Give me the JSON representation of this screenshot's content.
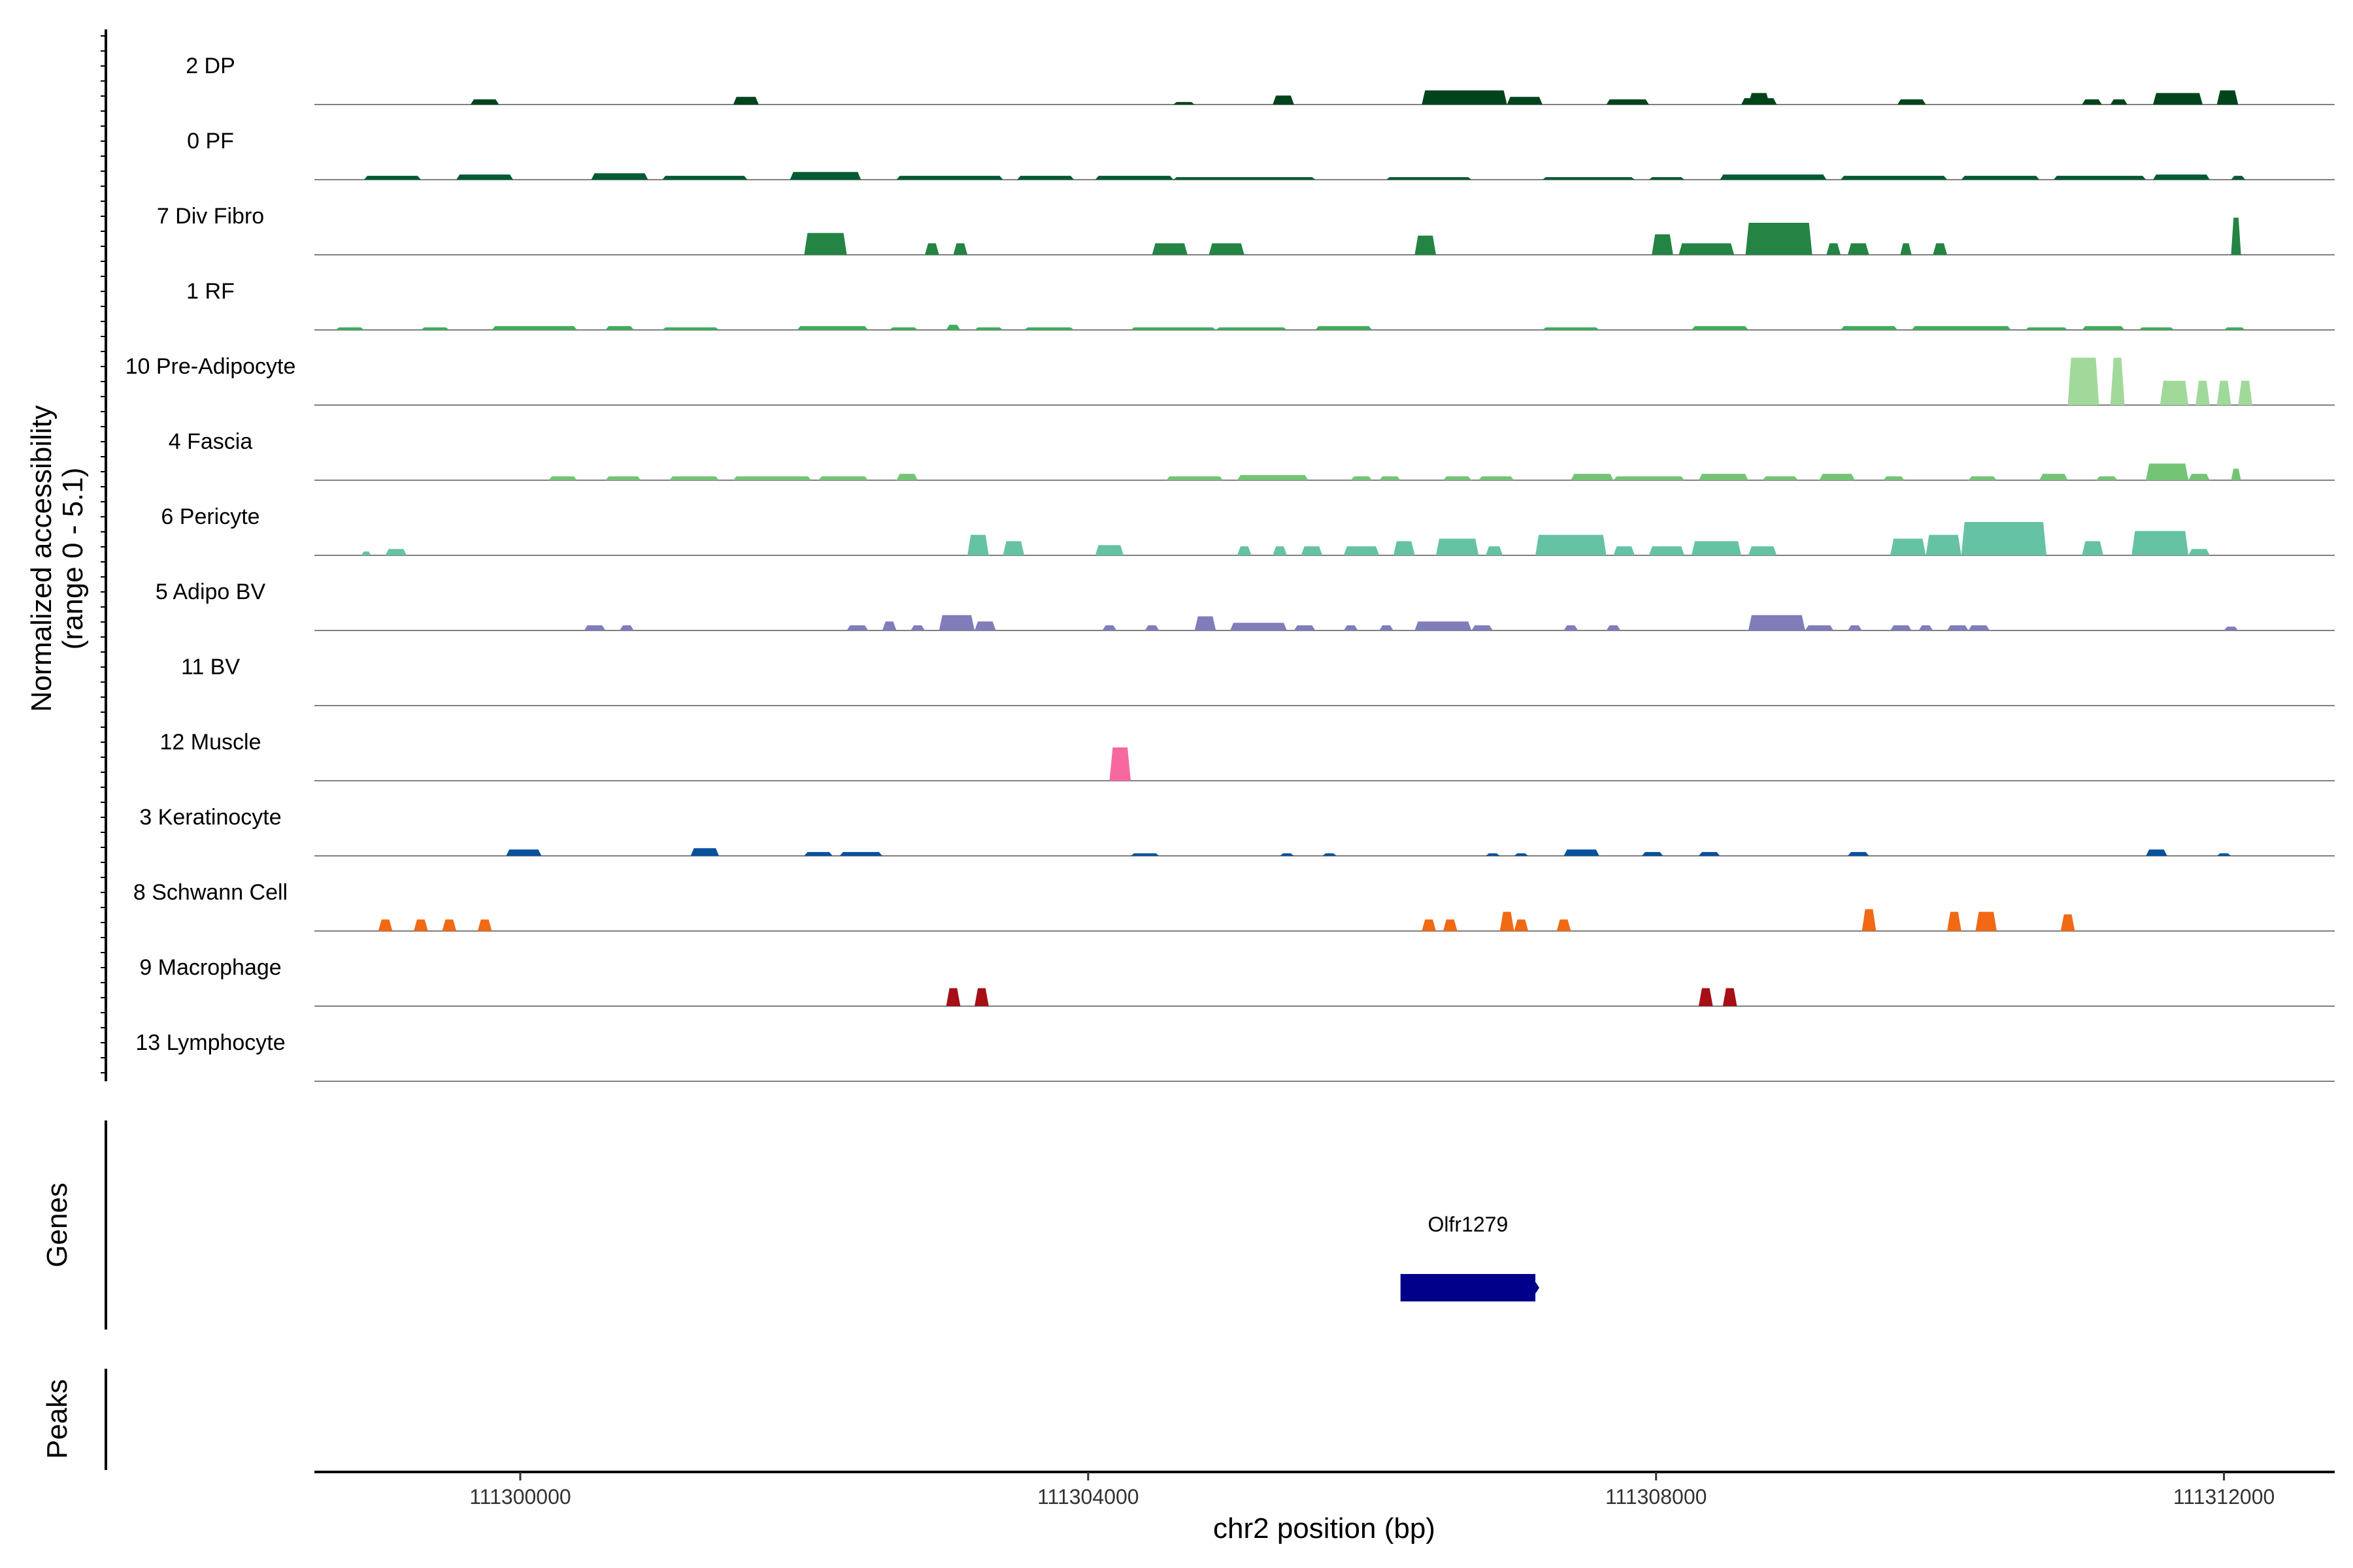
{
  "chart_data": {
    "type": "area",
    "title": "",
    "xlabel": "chr2 position (bp)",
    "ylabel_line1": "Normalized accessibility",
    "ylabel_line2": "(range 0 - 5.1)",
    "ylim": [
      0,
      5.1
    ],
    "xlim": [
      111298550,
      111312780
    ],
    "x_ticks": [
      111300000,
      111304000,
      111308000,
      111312000
    ],
    "x_tick_labels": [
      "111300000",
      "111304000",
      "111308000",
      "111312000"
    ],
    "panel_labels": {
      "genes": "Genes",
      "peaks": "Peaks"
    },
    "genes": [
      {
        "name": "Olfr1279",
        "start": 111306200,
        "end": 111307150,
        "strand": "+",
        "color": "#00008B"
      }
    ],
    "peaks": [],
    "series": [
      {
        "name": "2 DP",
        "color": "#00441B",
        "segments": [
          [
            111299650,
            111299850,
            0.4
          ],
          [
            111301500,
            111301680,
            0.6
          ],
          [
            111304600,
            111304750,
            0.2
          ],
          [
            111305300,
            111305450,
            0.7
          ],
          [
            111306350,
            111306950,
            1.1
          ],
          [
            111306950,
            111307200,
            0.6
          ],
          [
            111307650,
            111307950,
            0.4
          ],
          [
            111308650,
            111308800,
            0.9
          ],
          [
            111308600,
            111308850,
            0.5
          ],
          [
            111309700,
            111309900,
            0.4
          ],
          [
            111311000,
            111311140,
            0.4
          ],
          [
            111311200,
            111311320,
            0.4
          ],
          [
            111311500,
            111311850,
            0.9
          ],
          [
            111311950,
            111312100,
            1.1
          ]
        ]
      },
      {
        "name": "0 PF",
        "color": "#005A32",
        "segments": [
          [
            111298900,
            111299300,
            0.3
          ],
          [
            111299550,
            111299950,
            0.4
          ],
          [
            111300500,
            111300900,
            0.5
          ],
          [
            111301000,
            111301600,
            0.3
          ],
          [
            111301900,
            111302400,
            0.6
          ],
          [
            111302650,
            111303400,
            0.3
          ],
          [
            111303500,
            111303900,
            0.3
          ],
          [
            111304050,
            111304600,
            0.3
          ],
          [
            111304600,
            111305600,
            0.2
          ],
          [
            111306100,
            111306700,
            0.2
          ],
          [
            111307200,
            111307850,
            0.2
          ],
          [
            111307950,
            111308200,
            0.2
          ],
          [
            111308450,
            111309200,
            0.4
          ],
          [
            111309300,
            111310050,
            0.3
          ],
          [
            111310150,
            111310700,
            0.3
          ],
          [
            111310800,
            111311450,
            0.3
          ],
          [
            111311500,
            111311900,
            0.4
          ],
          [
            111312050,
            111312150,
            0.3
          ]
        ]
      },
      {
        "name": "7 Div Fibro",
        "color": "#238443",
        "segments": [
          [
            111302000,
            111302300,
            1.7
          ],
          [
            111302850,
            111302950,
            0.9
          ],
          [
            111303050,
            111303150,
            0.9
          ],
          [
            111304450,
            111304700,
            0.9
          ],
          [
            111304850,
            111305100,
            0.9
          ],
          [
            111306300,
            111306450,
            1.5
          ],
          [
            111307970,
            111308120,
            1.6
          ],
          [
            111308160,
            111308550,
            0.9
          ],
          [
            111308630,
            111309100,
            2.5
          ],
          [
            111309200,
            111309300,
            0.9
          ],
          [
            111309350,
            111309500,
            0.9
          ],
          [
            111309720,
            111309800,
            0.9
          ],
          [
            111309950,
            111310050,
            0.9
          ],
          [
            111312050,
            111312120,
            2.9
          ]
        ]
      },
      {
        "name": "1 RF",
        "color": "#41AB5D",
        "segments": [
          [
            111298700,
            111298900,
            0.2
          ],
          [
            111299300,
            111299500,
            0.2
          ],
          [
            111299800,
            111300400,
            0.3
          ],
          [
            111300600,
            111300800,
            0.3
          ],
          [
            111301000,
            111301400,
            0.2
          ],
          [
            111301950,
            111302450,
            0.3
          ],
          [
            111302600,
            111302800,
            0.2
          ],
          [
            111303000,
            111303100,
            0.4
          ],
          [
            111303200,
            111303400,
            0.2
          ],
          [
            111303550,
            111303900,
            0.2
          ],
          [
            111304300,
            111304900,
            0.2
          ],
          [
            111304900,
            111305400,
            0.2
          ],
          [
            111305600,
            111306000,
            0.3
          ],
          [
            111307200,
            111307600,
            0.2
          ],
          [
            111308250,
            111308650,
            0.3
          ],
          [
            111309300,
            111309700,
            0.3
          ],
          [
            111309800,
            111310500,
            0.3
          ],
          [
            111310600,
            111310900,
            0.2
          ],
          [
            111311000,
            111311300,
            0.3
          ],
          [
            111311400,
            111311650,
            0.2
          ],
          [
            111312000,
            111312150,
            0.2
          ]
        ]
      },
      {
        "name": "10 Pre-Adipocyte",
        "color": "#A1D99B",
        "segments": [
          [
            111310900,
            111311120,
            3.7
          ],
          [
            111311200,
            111311300,
            3.7
          ],
          [
            111311550,
            111311750,
            1.9
          ],
          [
            111311800,
            111311900,
            1.9
          ],
          [
            111311950,
            111312050,
            1.9
          ],
          [
            111312100,
            111312200,
            1.9
          ]
        ]
      },
      {
        "name": "4 Fascia",
        "color": "#74C476",
        "segments": [
          [
            111300200,
            111300400,
            0.3
          ],
          [
            111300600,
            111300850,
            0.3
          ],
          [
            111301050,
            111301400,
            0.3
          ],
          [
            111301500,
            111302050,
            0.3
          ],
          [
            111302100,
            111302450,
            0.3
          ],
          [
            111302650,
            111302800,
            0.5
          ],
          [
            111304550,
            111304950,
            0.3
          ],
          [
            111305050,
            111305550,
            0.4
          ],
          [
            111305850,
            111306000,
            0.3
          ],
          [
            111306050,
            111306200,
            0.3
          ],
          [
            111306500,
            111306700,
            0.3
          ],
          [
            111306750,
            111307000,
            0.3
          ],
          [
            111307400,
            111307700,
            0.5
          ],
          [
            111307700,
            111308200,
            0.3
          ],
          [
            111308300,
            111308650,
            0.5
          ],
          [
            111308750,
            111309000,
            0.3
          ],
          [
            111309150,
            111309400,
            0.5
          ],
          [
            111309600,
            111309750,
            0.3
          ],
          [
            111310200,
            111310400,
            0.3
          ],
          [
            111310700,
            111310900,
            0.5
          ],
          [
            111311100,
            111311250,
            0.3
          ],
          [
            111311450,
            111311750,
            1.3
          ],
          [
            111311750,
            111311900,
            0.5
          ],
          [
            111312050,
            111312120,
            0.9
          ]
        ]
      },
      {
        "name": "6 Pericyte",
        "color": "#66C2A4",
        "segments": [
          [
            111298880,
            111298950,
            0.3
          ],
          [
            111299050,
            111299200,
            0.5
          ],
          [
            111303150,
            111303300,
            1.6
          ],
          [
            111303400,
            111303550,
            1.1
          ],
          [
            111304050,
            111304250,
            0.8
          ],
          [
            111305050,
            111305150,
            0.7
          ],
          [
            111305300,
            111305400,
            0.7
          ],
          [
            111305500,
            111305650,
            0.7
          ],
          [
            111305800,
            111306050,
            0.7
          ],
          [
            111306150,
            111306300,
            1.1
          ],
          [
            111306450,
            111306750,
            1.3
          ],
          [
            111306800,
            111306920,
            0.7
          ],
          [
            111307150,
            111307650,
            1.6
          ],
          [
            111307700,
            111307850,
            0.7
          ],
          [
            111307950,
            111308200,
            0.7
          ],
          [
            111308250,
            111308600,
            1.1
          ],
          [
            111308650,
            111308850,
            0.7
          ],
          [
            111309650,
            111309900,
            1.3
          ],
          [
            111309900,
            111310150,
            1.6
          ],
          [
            111310150,
            111310750,
            2.6
          ],
          [
            111311000,
            111311150,
            1.1
          ],
          [
            111311350,
            111311750,
            1.9
          ],
          [
            111311750,
            111311900,
            0.5
          ]
        ]
      },
      {
        "name": "5 Adipo BV",
        "color": "#807DBA",
        "segments": [
          [
            111300450,
            111300600,
            0.4
          ],
          [
            111300700,
            111300800,
            0.4
          ],
          [
            111302300,
            111302450,
            0.4
          ],
          [
            111302550,
            111302650,
            0.7
          ],
          [
            111302750,
            111302850,
            0.4
          ],
          [
            111302950,
            111303200,
            1.2
          ],
          [
            111303200,
            111303350,
            0.7
          ],
          [
            111304100,
            111304200,
            0.4
          ],
          [
            111304400,
            111304500,
            0.4
          ],
          [
            111304750,
            111304900,
            1.1
          ],
          [
            111305000,
            111305400,
            0.6
          ],
          [
            111305450,
            111305600,
            0.4
          ],
          [
            111305800,
            111305900,
            0.4
          ],
          [
            111306050,
            111306150,
            0.4
          ],
          [
            111306300,
            111306700,
            0.7
          ],
          [
            111306700,
            111306850,
            0.4
          ],
          [
            111307350,
            111307450,
            0.4
          ],
          [
            111307650,
            111307750,
            0.4
          ],
          [
            111308650,
            111309050,
            1.2
          ],
          [
            111309050,
            111309250,
            0.4
          ],
          [
            111309350,
            111309450,
            0.4
          ],
          [
            111309650,
            111309800,
            0.4
          ],
          [
            111309850,
            111309950,
            0.4
          ],
          [
            111310050,
            111310200,
            0.4
          ],
          [
            111310200,
            111310350,
            0.4
          ],
          [
            111312000,
            111312100,
            0.3
          ]
        ]
      },
      {
        "name": "11 BV",
        "color": "#3F007D",
        "segments": []
      },
      {
        "name": "12 Muscle",
        "color": "#F768A1",
        "segments": [
          [
            111304150,
            111304300,
            2.6
          ]
        ]
      },
      {
        "name": "3 Keratinocyte",
        "color": "#08519C",
        "segments": [
          [
            111299900,
            111300150,
            0.5
          ],
          [
            111301200,
            111301400,
            0.6
          ],
          [
            111302000,
            111302200,
            0.3
          ],
          [
            111302250,
            111302550,
            0.3
          ],
          [
            111304300,
            111304500,
            0.2
          ],
          [
            111305350,
            111305450,
            0.2
          ],
          [
            111305650,
            111305750,
            0.2
          ],
          [
            111306800,
            111306900,
            0.2
          ],
          [
            111307000,
            111307100,
            0.2
          ],
          [
            111307350,
            111307600,
            0.5
          ],
          [
            111307900,
            111308050,
            0.3
          ],
          [
            111308300,
            111308450,
            0.3
          ],
          [
            111309350,
            111309500,
            0.3
          ],
          [
            111311450,
            111311600,
            0.5
          ],
          [
            111311950,
            111312050,
            0.2
          ]
        ]
      },
      {
        "name": "8 Schwann Cell",
        "color": "#F16913",
        "segments": [
          [
            111299000,
            111299100,
            0.9
          ],
          [
            111299250,
            111299350,
            0.9
          ],
          [
            111299450,
            111299550,
            0.9
          ],
          [
            111299700,
            111299800,
            0.9
          ],
          [
            111306350,
            111306450,
            0.9
          ],
          [
            111306500,
            111306600,
            0.9
          ],
          [
            111306900,
            111307000,
            1.5
          ],
          [
            111307000,
            111307100,
            0.9
          ],
          [
            111307300,
            111307400,
            0.9
          ],
          [
            111309450,
            111309550,
            1.7
          ],
          [
            111310050,
            111310150,
            1.5
          ],
          [
            111310250,
            111310400,
            1.5
          ],
          [
            111310850,
            111310950,
            1.3
          ]
        ]
      },
      {
        "name": "9 Macrophage",
        "color": "#A50F15",
        "segments": [
          [
            111303000,
            111303100,
            1.4
          ],
          [
            111303200,
            111303300,
            1.4
          ],
          [
            111308300,
            111308400,
            1.4
          ],
          [
            111308470,
            111308570,
            1.4
          ]
        ]
      },
      {
        "name": "13 Lymphocyte",
        "color": "#67000D",
        "segments": []
      }
    ]
  }
}
